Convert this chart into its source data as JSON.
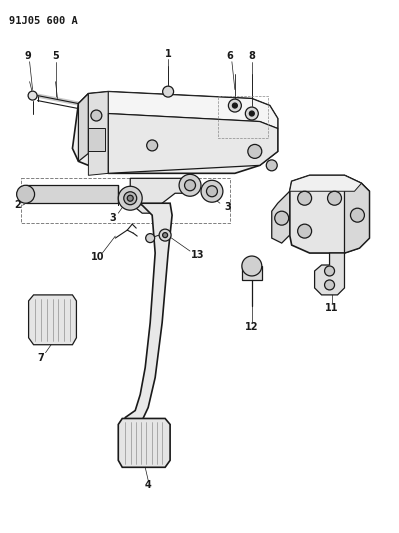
{
  "title": "91J05 600 A",
  "bg_color": "#ffffff",
  "line_color": "#1a1a1a",
  "figsize": [
    3.99,
    5.33
  ],
  "dpi": 100,
  "xlim": [
    0,
    3.99
  ],
  "ylim": [
    0,
    5.33
  ]
}
